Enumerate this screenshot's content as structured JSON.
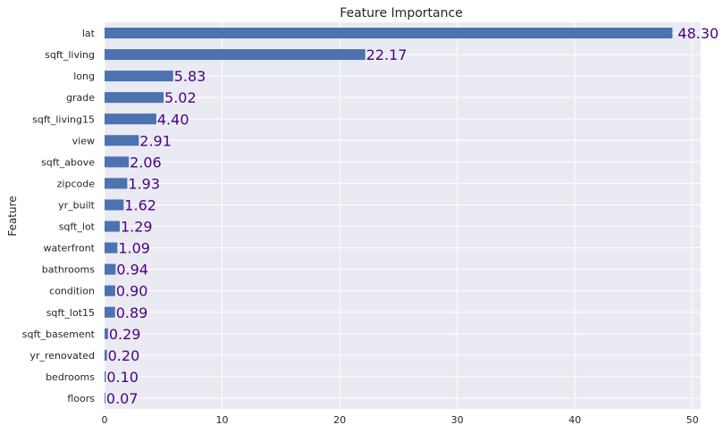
{
  "chart_data": {
    "type": "bar",
    "orientation": "horizontal",
    "title": "Feature Importance",
    "xlabel": "",
    "ylabel": "Feature",
    "categories": [
      "lat",
      "sqft_living",
      "long",
      "grade",
      "sqft_living15",
      "view",
      "sqft_above",
      "zipcode",
      "yr_built",
      "sqft_lot",
      "waterfront",
      "bathrooms",
      "condition",
      "sqft_lot15",
      "sqft_basement",
      "yr_renovated",
      "bedrooms",
      "floors"
    ],
    "values": [
      48.3,
      22.17,
      5.83,
      5.02,
      4.4,
      2.91,
      2.06,
      1.93,
      1.62,
      1.29,
      1.09,
      0.94,
      0.9,
      0.89,
      0.29,
      0.2,
      0.1,
      0.07
    ],
    "value_labels": [
      "48.30",
      "22.17",
      "5.83",
      "5.02",
      "4.40",
      "2.91",
      "2.06",
      "1.93",
      "1.62",
      "1.29",
      "1.09",
      "0.94",
      "0.90",
      "0.89",
      "0.29",
      "0.20",
      "0.10",
      "0.07"
    ],
    "xlim": [
      0,
      50.7
    ],
    "xticks": [
      0,
      10,
      20,
      30,
      40,
      50
    ],
    "grid": true,
    "legend": "none",
    "colors": {
      "bar": "#4c72b0",
      "background": "#eaeaf2",
      "grid": "#ffffff",
      "value_label": "#4b0082"
    }
  }
}
